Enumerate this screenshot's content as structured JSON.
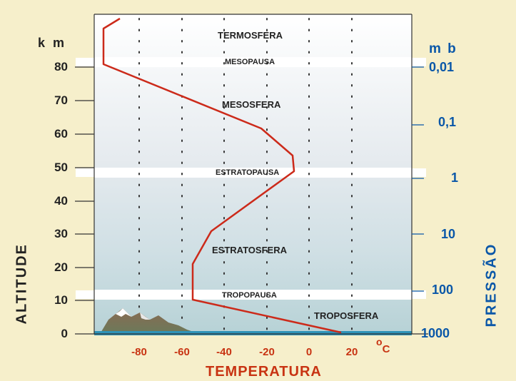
{
  "altitude": {
    "unit": "k m",
    "title": "ALTITUDE",
    "ticks": [
      "0",
      "10",
      "20",
      "30",
      "40",
      "50",
      "60",
      "70",
      "80"
    ]
  },
  "pressure": {
    "unit": "m b",
    "title": "PRESSÃO",
    "ticks": [
      "1000",
      "100",
      "10",
      "1",
      "0,1",
      "0,01"
    ]
  },
  "temperature": {
    "title": "TEMPERATURA",
    "unit": "C",
    "unit_prefix": "o",
    "ticks": [
      "-80",
      "-60",
      "-40",
      "-20",
      "0",
      "20"
    ]
  },
  "layers": {
    "termosfera": "TERMOSFERA",
    "mesopausa": "MESOPAUSA",
    "mesosfera": "MESOSFERA",
    "estratopausa": "ESTRATOPAUSA",
    "estratosfera": "ESTRATOSFERA",
    "tropopausa": "TROPOPAUSA",
    "troposfera": "TROPOSFERA"
  },
  "colors": {
    "background": "#f6efcb",
    "profile_line": "#cc2a1a",
    "pressure_text": "#0a57a8",
    "temperature_text": "#c83312",
    "ground": "#2e93b8"
  }
}
